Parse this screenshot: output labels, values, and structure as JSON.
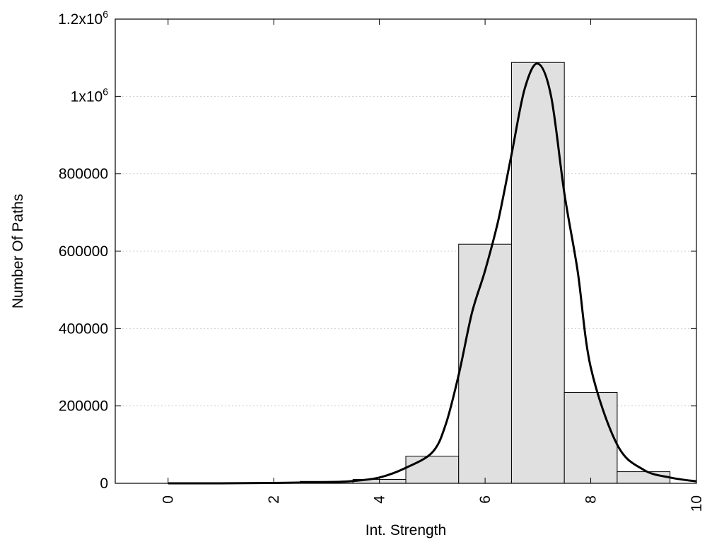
{
  "chart_data": {
    "type": "bar",
    "title": "",
    "xlabel": "Int. Strength",
    "ylabel": "Number Of Paths",
    "xlim": [
      -1,
      10
    ],
    "ylim": [
      0,
      1200000
    ],
    "grid": true,
    "bar_fill": "#e0e0e0",
    "bar_stroke": "#000000",
    "grid_color": "#cccccc",
    "x_ticks": [
      {
        "value": 0,
        "label": "0"
      },
      {
        "value": 2,
        "label": "2"
      },
      {
        "value": 4,
        "label": "4"
      },
      {
        "value": 6,
        "label": "6"
      },
      {
        "value": 8,
        "label": "8"
      },
      {
        "value": 10,
        "label": "10"
      }
    ],
    "y_ticks": [
      {
        "value": 0,
        "label": "0"
      },
      {
        "value": 200000,
        "label": "200000"
      },
      {
        "value": 400000,
        "label": "400000"
      },
      {
        "value": 600000,
        "label": "600000"
      },
      {
        "value": 800000,
        "label": "800000"
      },
      {
        "value": 1000000,
        "base": "1x10",
        "exp": "6"
      },
      {
        "value": 1200000,
        "base": "1.2x10",
        "exp": "6"
      }
    ],
    "bins": [
      {
        "left": 0,
        "right": 1,
        "value": 0
      },
      {
        "left": 1,
        "right": 2,
        "value": 0
      },
      {
        "left": 2,
        "right": 3,
        "value": 0
      },
      {
        "left": 3,
        "right": 4,
        "value": 5000
      },
      {
        "left": 4,
        "right": 5,
        "value": 10000
      },
      {
        "left": 5,
        "right": 6,
        "value": 70000
      },
      {
        "left": 6,
        "right": 7,
        "value": 618000
      },
      {
        "left": 7,
        "right": 8,
        "value": 1088000
      },
      {
        "left": 8,
        "right": 9,
        "value": 235000
      },
      {
        "left": 9,
        "right": 10,
        "value": 30000
      }
    ],
    "curve": {
      "x": [
        0,
        1,
        2,
        3,
        3.5,
        4,
        4.5,
        5,
        5.25,
        5.5,
        5.75,
        6,
        6.25,
        6.5,
        6.75,
        7,
        7.25,
        7.5,
        7.75,
        8,
        8.5,
        9,
        9.5,
        10
      ],
      "y": [
        0,
        0,
        1000,
        3000,
        6000,
        15000,
        40000,
        80000,
        150000,
        280000,
        440000,
        550000,
        680000,
        850000,
        1020000,
        1085000,
        1000000,
        750000,
        550000,
        300000,
        100000,
        35000,
        15000,
        5000
      ]
    }
  }
}
